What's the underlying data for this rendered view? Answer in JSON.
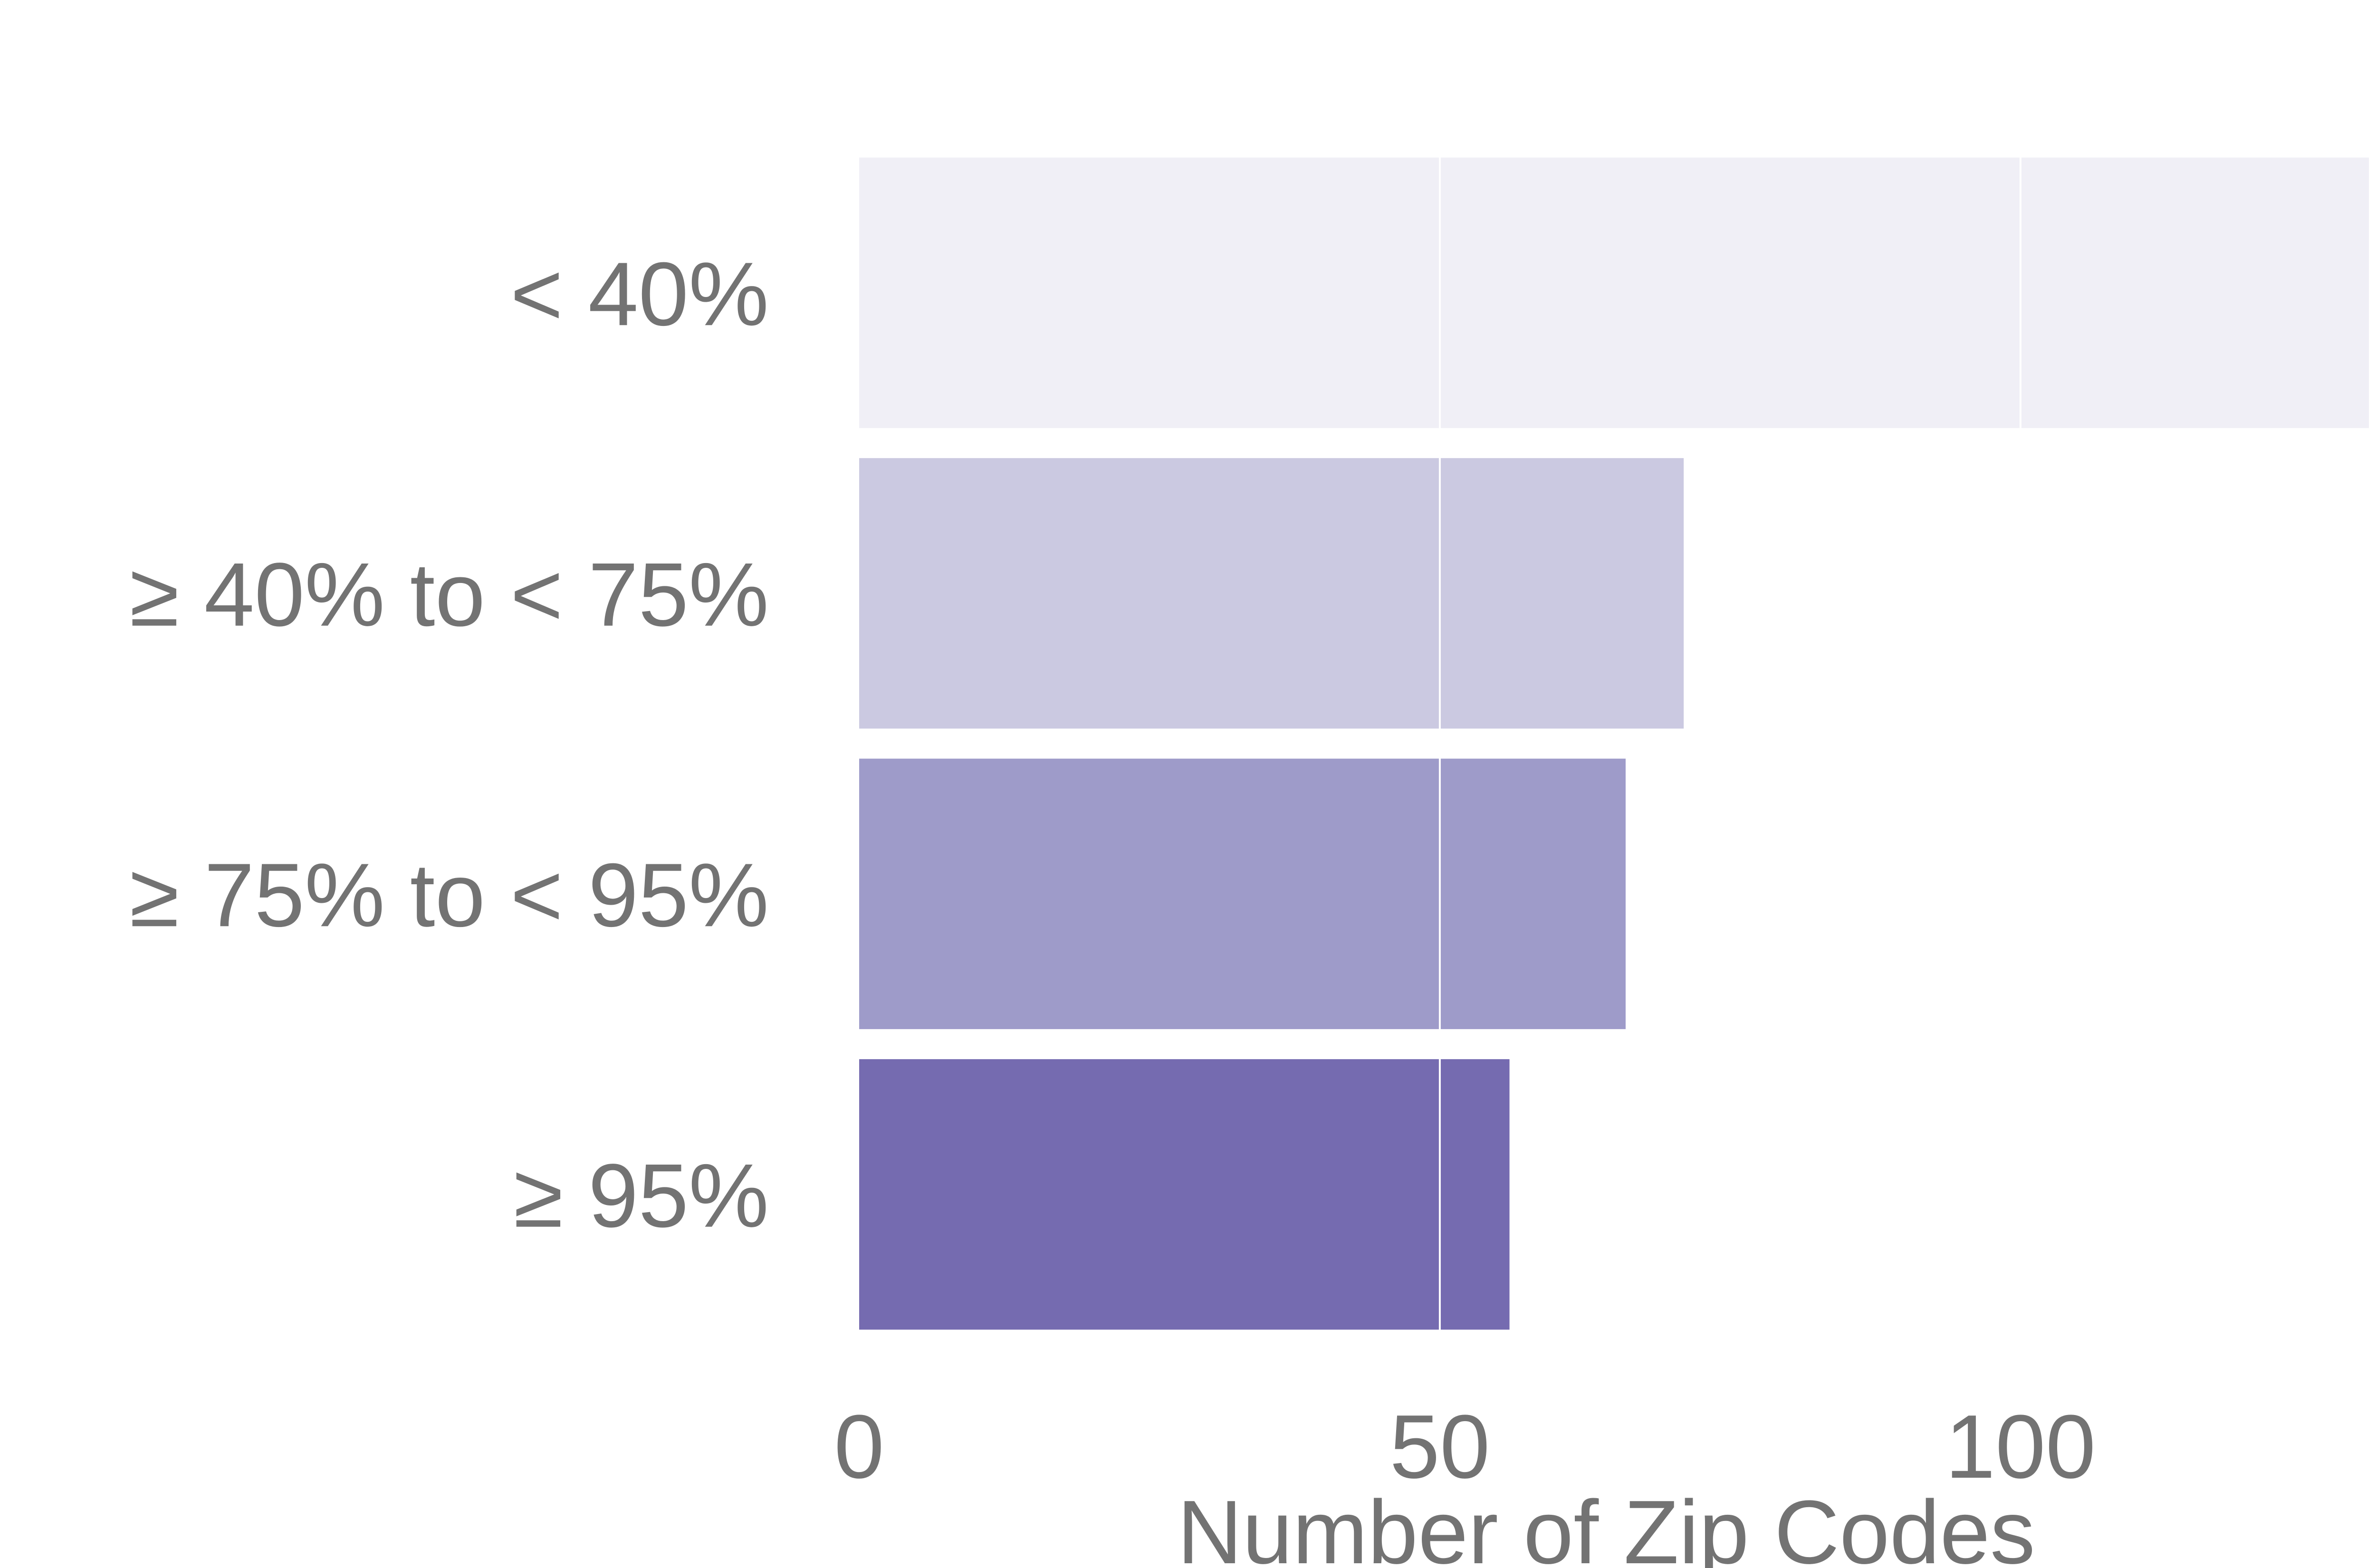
{
  "chart_data": {
    "type": "bar",
    "orientation": "horizontal",
    "categories": [
      "< 40%",
      "≥ 40% to < 75%",
      "≥ 75% to < 95%",
      "≥ 95%"
    ],
    "values": [
      130,
      71,
      66,
      56
    ],
    "colors": [
      "#f0eff6",
      "#cbc9e1",
      "#9e9bc9",
      "#756bb0"
    ],
    "xlabel": "Number of Zip Codes",
    "ylabel": "",
    "title": "",
    "xlim": [
      0,
      130
    ],
    "xticks": [
      0,
      50,
      100
    ],
    "xtick_labels": [
      "0",
      "50",
      "100"
    ],
    "grid": true,
    "grid_color": "#ffffff"
  }
}
